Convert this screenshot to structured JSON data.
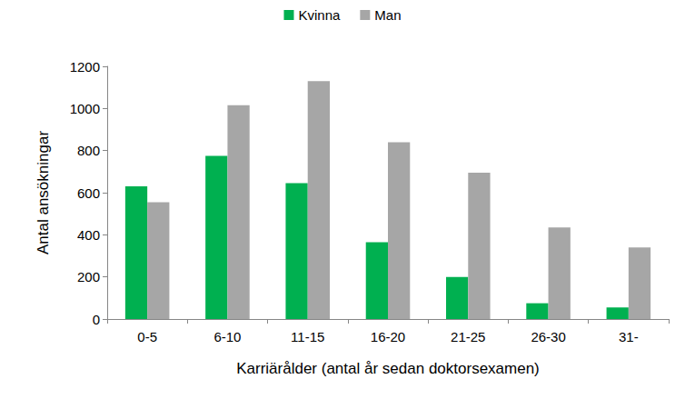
{
  "chart_data": {
    "type": "bar",
    "xlabel": "Karriärålder (antal år sedan doktorsexamen)",
    "ylabel": "Antal ansökningar",
    "categories": [
      "0-5",
      "6-10",
      "11-15",
      "16-20",
      "21-25",
      "26-30",
      "31-"
    ],
    "series": [
      {
        "name": "Kvinna",
        "color": "#00b050",
        "values": [
          630,
          775,
          645,
          365,
          200,
          75,
          55
        ]
      },
      {
        "name": "Man",
        "color": "#a6a6a6",
        "values": [
          555,
          1015,
          1130,
          840,
          695,
          435,
          340
        ]
      }
    ],
    "ylim": [
      0,
      1200
    ],
    "yticks": [
      0,
      200,
      400,
      600,
      800,
      1000,
      1200
    ],
    "grid": false,
    "legend": "top"
  }
}
